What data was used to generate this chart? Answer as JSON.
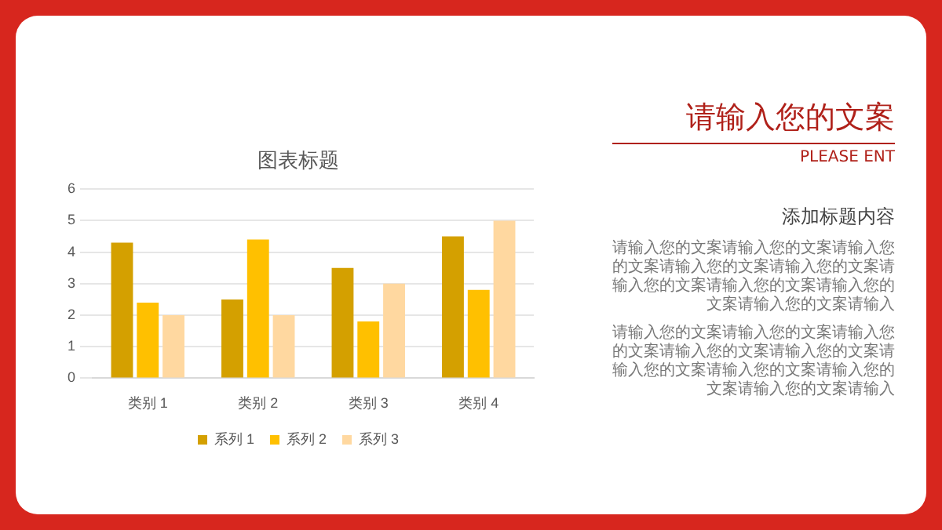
{
  "chart_data": {
    "type": "bar",
    "title": "图表标题",
    "categories": [
      "类别 1",
      "类别 2",
      "类别 3",
      "类别 4"
    ],
    "series": [
      {
        "name": "系列 1",
        "color": "#d4a000",
        "values": [
          4.3,
          2.5,
          3.5,
          4.5
        ]
      },
      {
        "name": "系列 2",
        "color": "#ffc000",
        "values": [
          2.4,
          4.4,
          1.8,
          2.8
        ]
      },
      {
        "name": "系列 3",
        "color": "#ffd8a0",
        "values": [
          2,
          2,
          3,
          5
        ]
      }
    ],
    "ylim": [
      0,
      6
    ],
    "yticks": [
      0,
      1,
      2,
      3,
      4,
      5,
      6
    ],
    "grid": "y",
    "legend": "bottom",
    "annotations": [
      "请输入您的文案",
      "PLEASE ENT",
      "添加标题内容",
      "请输入您的文案请输入您的文案请输入您的文案请输入您的文案请输入您的文案请输入您的文案请输入您的文案请输入您的文案请输入您的文案请输入",
      "请输入您的文案请输入您的文案请输入您的文案请输入您的文案请输入您的文案请输入您的文案请输入您的文案请输入您的文案请输入您的文案请输入"
    ]
  }
}
